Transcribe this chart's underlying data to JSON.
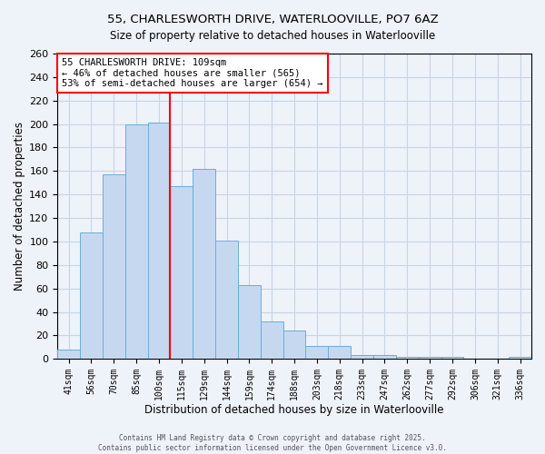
{
  "title": "55, CHARLESWORTH DRIVE, WATERLOOVILLE, PO7 6AZ",
  "subtitle": "Size of property relative to detached houses in Waterlooville",
  "xlabel": "Distribution of detached houses by size in Waterlooville",
  "ylabel": "Number of detached properties",
  "bar_labels": [
    "41sqm",
    "56sqm",
    "70sqm",
    "85sqm",
    "100sqm",
    "115sqm",
    "129sqm",
    "144sqm",
    "159sqm",
    "174sqm",
    "188sqm",
    "203sqm",
    "218sqm",
    "233sqm",
    "247sqm",
    "262sqm",
    "277sqm",
    "292sqm",
    "306sqm",
    "321sqm",
    "336sqm"
  ],
  "bar_values": [
    8,
    108,
    157,
    200,
    201,
    147,
    162,
    101,
    63,
    32,
    24,
    11,
    11,
    3,
    3,
    2,
    2,
    2,
    0,
    0,
    2
  ],
  "bar_color": "#c5d8f0",
  "bar_edgecolor": "#6baed6",
  "vline_color": "red",
  "annotation_text": "55 CHARLESWORTH DRIVE: 109sqm\n← 46% of detached houses are smaller (565)\n53% of semi-detached houses are larger (654) →",
  "annotation_box_edgecolor": "red",
  "annotation_box_facecolor": "white",
  "ylim": [
    0,
    260
  ],
  "yticks": [
    0,
    20,
    40,
    60,
    80,
    100,
    120,
    140,
    160,
    180,
    200,
    220,
    240,
    260
  ],
  "footer1": "Contains HM Land Registry data © Crown copyright and database right 2025.",
  "footer2": "Contains public sector information licensed under the Open Government Licence v3.0.",
  "bg_color": "#eef2f9",
  "grid_color": "#c8d4e6"
}
